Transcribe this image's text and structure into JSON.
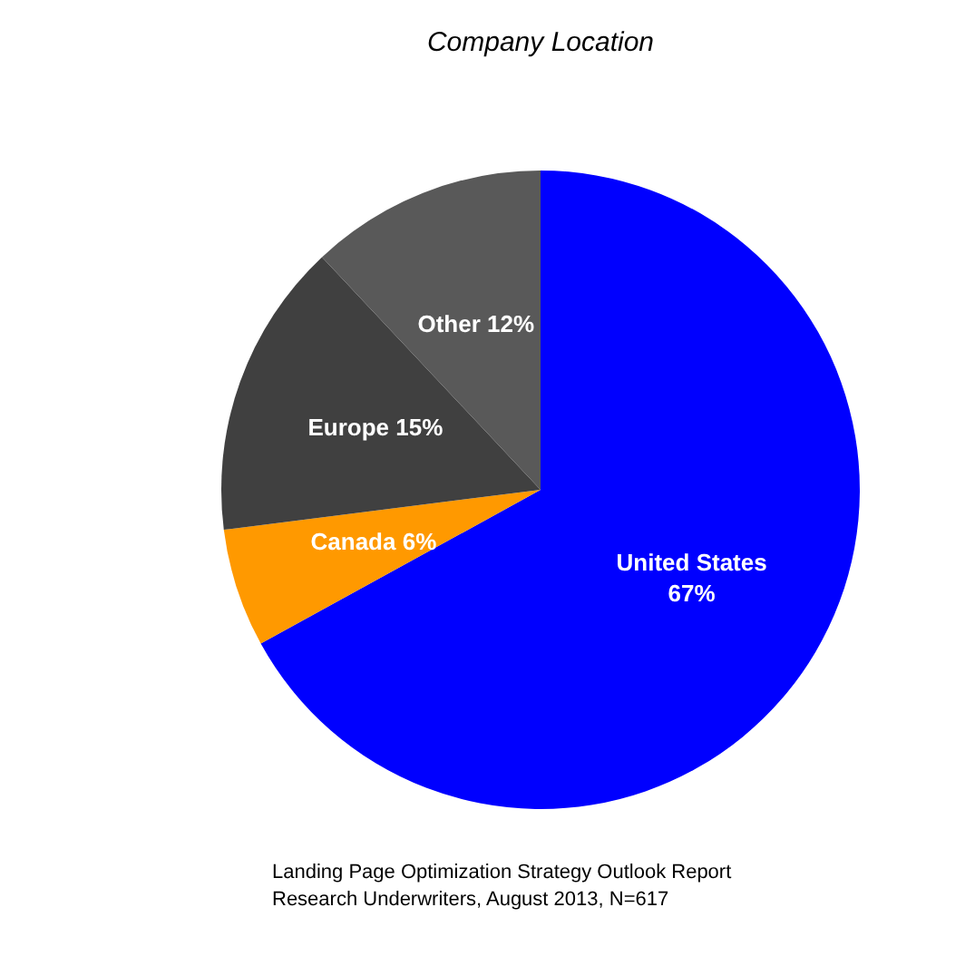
{
  "chart_data": {
    "type": "pie",
    "title": "Company Location",
    "categories": [
      "United States",
      "Canada",
      "Europe",
      "Other"
    ],
    "values": [
      67,
      6,
      15,
      12
    ],
    "value_labels": [
      "67%",
      "6%",
      "15%",
      "12%"
    ],
    "colors": [
      "#0000ff",
      "#ff9900",
      "#404040",
      "#595959"
    ],
    "annotations": [
      "Landing Page Optimization Strategy Outlook Report",
      "Research Underwriters, August 2013, N=617"
    ]
  }
}
